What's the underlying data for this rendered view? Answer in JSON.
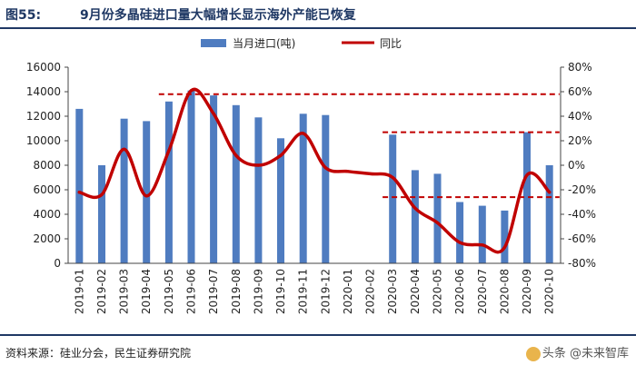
{
  "header": {
    "figure_label": "图55:",
    "title": "9月份多晶硅进口量大幅增长显示海外产能已恢复"
  },
  "footer": {
    "source": "资料来源：硅业分会，民生证券研究院",
    "watermark": "头条 @未来智库"
  },
  "colors": {
    "bar": "#4f7cc0",
    "line": "#c00000",
    "reference": "#c00000",
    "title": "#1f3864"
  },
  "chart_data": {
    "type": "bar",
    "categories": [
      "2019-01",
      "2019-02",
      "2019-03",
      "2019-04",
      "2019-05",
      "2019-06",
      "2019-07",
      "2019-08",
      "2019-09",
      "2019-10",
      "2019-11",
      "2019-12",
      "2020-01",
      "2020-02",
      "2020-03",
      "2020-04",
      "2020-05",
      "2020-06",
      "2020-07",
      "2020-08",
      "2020-09",
      "2020-10"
    ],
    "series": [
      {
        "name": "当月进口(吨)",
        "type": "bar",
        "axis": "left",
        "values": [
          12600,
          8000,
          11800,
          11600,
          13200,
          14100,
          13700,
          12900,
          11900,
          10200,
          12200,
          12100,
          null,
          null,
          10500,
          7600,
          7300,
          5000,
          4700,
          4300,
          10700,
          8000
        ]
      },
      {
        "name": "同比",
        "type": "line",
        "axis": "right",
        "values": [
          -22,
          -24,
          13,
          -25,
          12,
          61,
          42,
          8,
          0,
          8,
          26,
          -2,
          -5,
          -7,
          -10,
          -35,
          -47,
          -63,
          -65,
          -67,
          -8,
          -22
        ]
      }
    ],
    "left_axis": {
      "min": 0,
      "max": 16000,
      "ticks": [
        "0",
        "2000",
        "4000",
        "6000",
        "8000",
        "10000",
        "12000",
        "14000",
        "16000"
      ]
    },
    "right_axis": {
      "min": -80,
      "max": 80,
      "ticks": [
        "-80%",
        "-60%",
        "-40%",
        "-20%",
        "0%",
        "20%",
        "40%",
        "60%",
        "80%"
      ]
    },
    "reference_lines": [
      {
        "value": 58,
        "from": "2019-05",
        "to": "2020-10"
      },
      {
        "value": 27,
        "from": "2020-03",
        "to": "2020-10"
      },
      {
        "value": -26,
        "from": "2020-03",
        "to": "2020-10"
      }
    ],
    "legend_position": "top"
  }
}
